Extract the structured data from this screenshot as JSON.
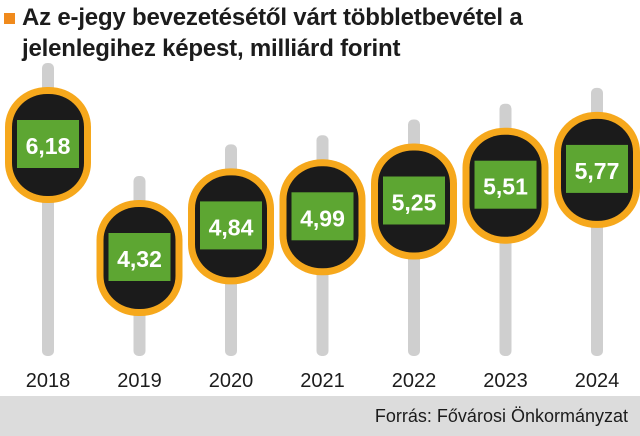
{
  "title": "Az e-jegy bevezetésétől várt többletbevétel a jelenlegihez képest, milliárd forint",
  "source": "Forrás: Fővárosi Önkormányzat",
  "colors": {
    "marker": "#f08a1c",
    "pole": "#cfcfcf",
    "sign_outer": "#f6a81c",
    "sign_inner": "#1b1b1b",
    "value_box": "#5da632",
    "value_text": "#ffffff",
    "footer": "#dcdcdc"
  },
  "chart_data": {
    "type": "bar",
    "title": "Az e-jegy bevezetésétől várt többletbevétel a jelenlegihez képest, milliárd forint",
    "unit": "milliárd forint",
    "categories": [
      "2018",
      "2019",
      "2020",
      "2021",
      "2022",
      "2023",
      "2024"
    ],
    "values": [
      6.18,
      4.32,
      4.84,
      4.99,
      5.25,
      5.51,
      5.77
    ],
    "value_labels": [
      "6,18",
      "4,32",
      "4,84",
      "4,99",
      "5,25",
      "5,51",
      "5,77"
    ],
    "grid": false,
    "legend": "none"
  }
}
